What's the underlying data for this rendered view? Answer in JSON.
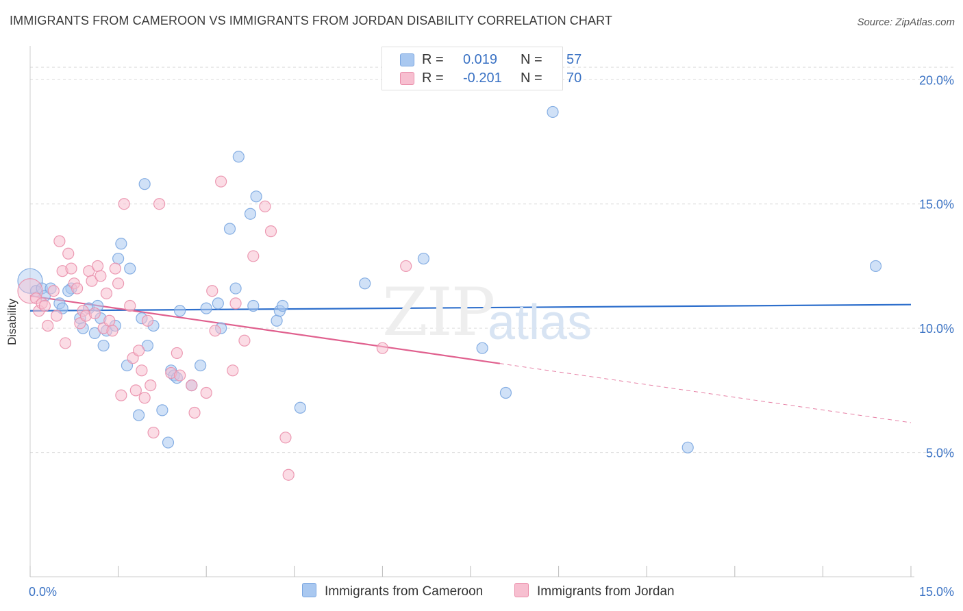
{
  "title": "IMMIGRANTS FROM CAMEROON VS IMMIGRANTS FROM JORDAN DISABILITY CORRELATION CHART",
  "source": "Source: ZipAtlas.com",
  "watermark": {
    "zip": "ZIP",
    "atlas": "atlas"
  },
  "legend": {
    "rows": [
      {
        "r_label": "R =",
        "r_value": "0.019",
        "n_label": "N =",
        "n_value": "57",
        "color": "#a9c8f0",
        "border": "#7aa6e0"
      },
      {
        "r_label": "R =",
        "r_value": "-0.201",
        "n_label": "N =",
        "n_value": "70",
        "color": "#f7bfd0",
        "border": "#ea8fab"
      }
    ]
  },
  "bottom_legend": [
    {
      "label": "Immigrants from Cameroon",
      "color": "#a9c8f0",
      "border": "#7aa6e0"
    },
    {
      "label": "Immigrants from Jordan",
      "color": "#f7bfd0",
      "border": "#ea8fab"
    }
  ],
  "chart_data": {
    "type": "scatter",
    "title": "IMMIGRANTS FROM CAMEROON VS IMMIGRANTS FROM JORDAN DISABILITY CORRELATION CHART",
    "xlabel": "",
    "ylabel": "Disability",
    "xlim": [
      0,
      15
    ],
    "ylim": [
      0,
      21
    ],
    "x_tick_labels": [
      "0.0%",
      "15.0%"
    ],
    "y_ticks": [
      5,
      10,
      15,
      20
    ],
    "y_tick_labels": [
      "5.0%",
      "10.0%",
      "15.0%",
      "20.0%"
    ],
    "grid": true,
    "legend_position": "top-center",
    "series": [
      {
        "name": "Immigrants from Cameroon",
        "color": "#7aa6e0",
        "fill": "#a9c8f0",
        "line_color": "#2e6fcc",
        "trend": {
          "x": [
            0,
            15
          ],
          "y": [
            10.7,
            10.95
          ],
          "dashed_from": null
        },
        "points": [
          {
            "x": 0.0,
            "y": 11.9,
            "big": true
          },
          {
            "x": 0.1,
            "y": 11.5
          },
          {
            "x": 0.2,
            "y": 11.6
          },
          {
            "x": 0.25,
            "y": 11.3
          },
          {
            "x": 0.35,
            "y": 11.6
          },
          {
            "x": 0.5,
            "y": 11.0
          },
          {
            "x": 0.55,
            "y": 10.8
          },
          {
            "x": 0.7,
            "y": 11.6
          },
          {
            "x": 0.65,
            "y": 11.5
          },
          {
            "x": 0.85,
            "y": 10.4
          },
          {
            "x": 0.9,
            "y": 10.0
          },
          {
            "x": 1.0,
            "y": 10.8
          },
          {
            "x": 1.1,
            "y": 9.8
          },
          {
            "x": 1.15,
            "y": 10.9
          },
          {
            "x": 1.2,
            "y": 10.4
          },
          {
            "x": 1.25,
            "y": 9.3
          },
          {
            "x": 1.3,
            "y": 9.9
          },
          {
            "x": 1.45,
            "y": 10.1
          },
          {
            "x": 1.5,
            "y": 12.8
          },
          {
            "x": 1.55,
            "y": 13.4
          },
          {
            "x": 1.65,
            "y": 8.5
          },
          {
            "x": 1.7,
            "y": 12.4
          },
          {
            "x": 1.85,
            "y": 6.5
          },
          {
            "x": 1.9,
            "y": 10.4
          },
          {
            "x": 1.95,
            "y": 15.8
          },
          {
            "x": 2.0,
            "y": 9.3
          },
          {
            "x": 2.1,
            "y": 10.1
          },
          {
            "x": 2.25,
            "y": 6.7
          },
          {
            "x": 2.35,
            "y": 5.4
          },
          {
            "x": 2.4,
            "y": 8.3
          },
          {
            "x": 2.45,
            "y": 8.1
          },
          {
            "x": 2.5,
            "y": 8.0
          },
          {
            "x": 2.55,
            "y": 10.7
          },
          {
            "x": 2.75,
            "y": 7.7
          },
          {
            "x": 2.9,
            "y": 8.5
          },
          {
            "x": 3.0,
            "y": 10.8
          },
          {
            "x": 3.2,
            "y": 11.0
          },
          {
            "x": 3.25,
            "y": 10.0
          },
          {
            "x": 3.4,
            "y": 14.0
          },
          {
            "x": 3.5,
            "y": 11.6
          },
          {
            "x": 3.55,
            "y": 16.9
          },
          {
            "x": 3.75,
            "y": 14.6
          },
          {
            "x": 3.8,
            "y": 10.9
          },
          {
            "x": 3.85,
            "y": 15.3
          },
          {
            "x": 4.2,
            "y": 10.3
          },
          {
            "x": 4.25,
            "y": 10.7
          },
          {
            "x": 4.3,
            "y": 10.9
          },
          {
            "x": 4.6,
            "y": 6.8
          },
          {
            "x": 5.7,
            "y": 11.8
          },
          {
            "x": 6.7,
            "y": 12.8
          },
          {
            "x": 7.7,
            "y": 9.2
          },
          {
            "x": 8.1,
            "y": 7.4
          },
          {
            "x": 8.9,
            "y": 18.7
          },
          {
            "x": 11.2,
            "y": 5.2
          },
          {
            "x": 14.4,
            "y": 12.5
          }
        ]
      },
      {
        "name": "Immigrants from Jordan",
        "color": "#ea8fab",
        "fill": "#f7bfd0",
        "line_color": "#e0608e",
        "trend": {
          "x": [
            0,
            15
          ],
          "y": [
            11.3,
            6.2
          ],
          "dashed_from": 8.0
        },
        "points": [
          {
            "x": 0.0,
            "y": 11.5,
            "big": true
          },
          {
            "x": 0.1,
            "y": 11.2
          },
          {
            "x": 0.15,
            "y": 10.7
          },
          {
            "x": 0.2,
            "y": 11.0
          },
          {
            "x": 0.25,
            "y": 10.9
          },
          {
            "x": 0.3,
            "y": 10.1
          },
          {
            "x": 0.4,
            "y": 11.5
          },
          {
            "x": 0.45,
            "y": 10.5
          },
          {
            "x": 0.5,
            "y": 13.5
          },
          {
            "x": 0.55,
            "y": 12.3
          },
          {
            "x": 0.6,
            "y": 9.4
          },
          {
            "x": 0.65,
            "y": 13.0
          },
          {
            "x": 0.7,
            "y": 12.4
          },
          {
            "x": 0.75,
            "y": 11.8
          },
          {
            "x": 0.8,
            "y": 11.6
          },
          {
            "x": 0.85,
            "y": 10.2
          },
          {
            "x": 0.9,
            "y": 10.7
          },
          {
            "x": 0.95,
            "y": 10.5
          },
          {
            "x": 1.0,
            "y": 12.3
          },
          {
            "x": 1.05,
            "y": 11.9
          },
          {
            "x": 1.1,
            "y": 10.6
          },
          {
            "x": 1.15,
            "y": 12.5
          },
          {
            "x": 1.2,
            "y": 12.1
          },
          {
            "x": 1.25,
            "y": 10.0
          },
          {
            "x": 1.3,
            "y": 11.4
          },
          {
            "x": 1.35,
            "y": 10.3
          },
          {
            "x": 1.4,
            "y": 9.9
          },
          {
            "x": 1.45,
            "y": 12.4
          },
          {
            "x": 1.5,
            "y": 11.8
          },
          {
            "x": 1.55,
            "y": 7.3
          },
          {
            "x": 1.6,
            "y": 15.0
          },
          {
            "x": 1.7,
            "y": 10.9
          },
          {
            "x": 1.75,
            "y": 8.8
          },
          {
            "x": 1.8,
            "y": 7.5
          },
          {
            "x": 1.85,
            "y": 9.1
          },
          {
            "x": 1.9,
            "y": 8.3
          },
          {
            "x": 1.95,
            "y": 7.2
          },
          {
            "x": 2.0,
            "y": 10.3
          },
          {
            "x": 2.05,
            "y": 7.7
          },
          {
            "x": 2.1,
            "y": 5.8
          },
          {
            "x": 2.2,
            "y": 15.0
          },
          {
            "x": 2.4,
            "y": 8.2
          },
          {
            "x": 2.5,
            "y": 9.0
          },
          {
            "x": 2.55,
            "y": 8.1
          },
          {
            "x": 2.75,
            "y": 7.7
          },
          {
            "x": 2.8,
            "y": 6.6
          },
          {
            "x": 3.0,
            "y": 7.4
          },
          {
            "x": 3.1,
            "y": 11.5
          },
          {
            "x": 3.15,
            "y": 9.9
          },
          {
            "x": 3.25,
            "y": 15.9
          },
          {
            "x": 3.45,
            "y": 8.3
          },
          {
            "x": 3.5,
            "y": 11.0
          },
          {
            "x": 3.65,
            "y": 9.5
          },
          {
            "x": 3.8,
            "y": 12.9
          },
          {
            "x": 4.0,
            "y": 14.9
          },
          {
            "x": 4.1,
            "y": 13.9
          },
          {
            "x": 4.35,
            "y": 5.6
          },
          {
            "x": 4.4,
            "y": 4.1
          },
          {
            "x": 6.0,
            "y": 9.2
          },
          {
            "x": 6.4,
            "y": 12.5
          }
        ]
      }
    ]
  }
}
